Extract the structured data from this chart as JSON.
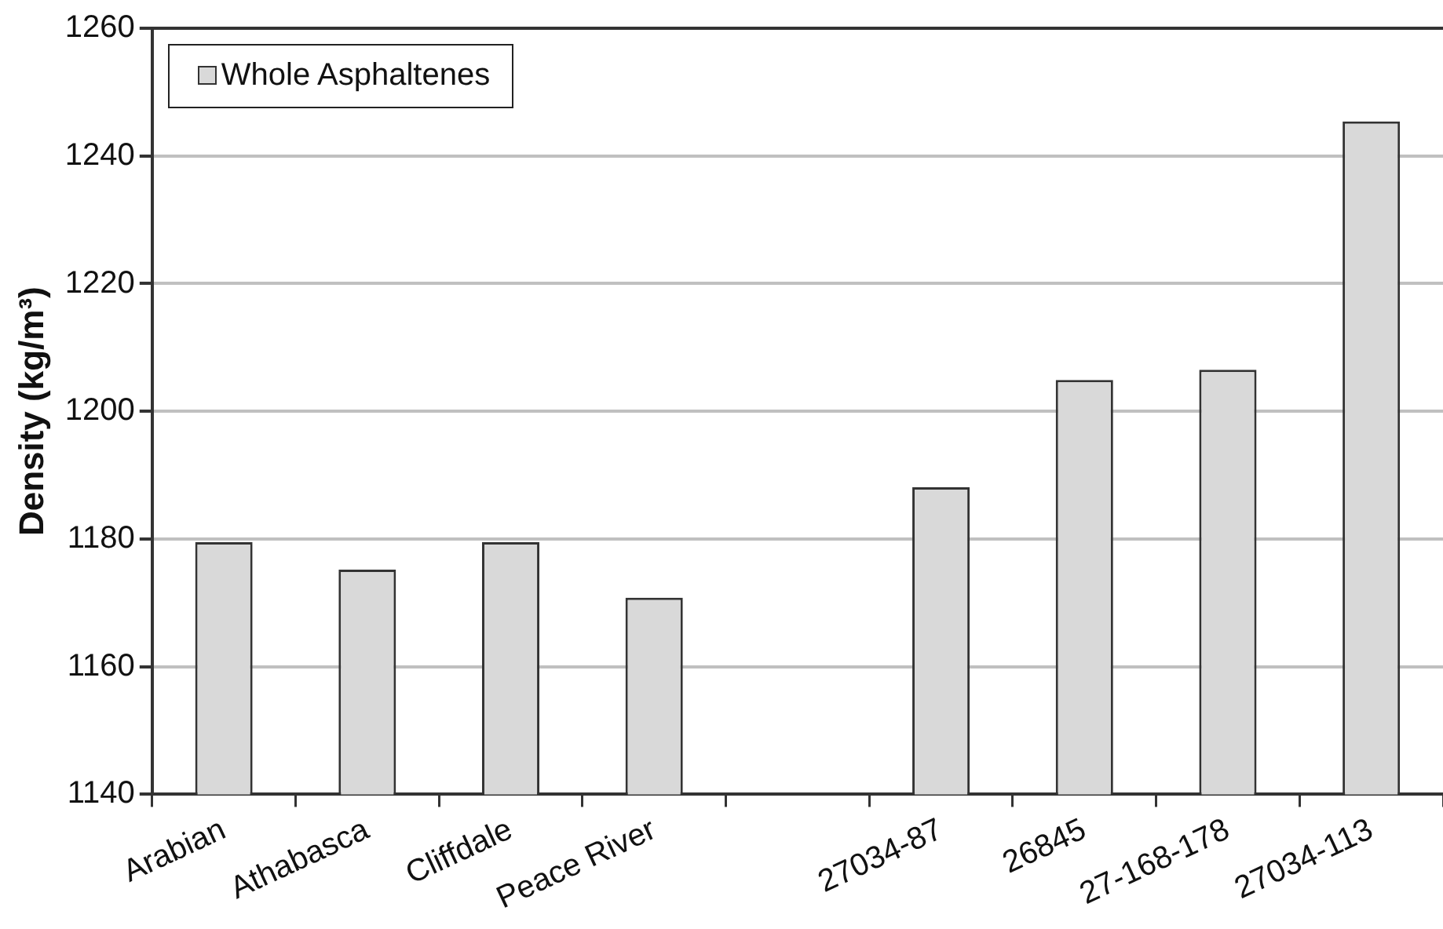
{
  "chart_data": {
    "type": "bar",
    "ylabel": "Density (kg/m³)",
    "categories": [
      "Arabian",
      "Athabasca",
      "Cliffdale",
      "Peace River",
      null,
      "27034-87",
      "26845",
      "27-168-178",
      "27034-113"
    ],
    "series": [
      {
        "name": "Whole Asphaltenes",
        "color": "#d9d9d9",
        "values": [
          1179.5,
          1175.2,
          1179.5,
          1170.8,
          null,
          1188.1,
          1204.9,
          1206.5,
          1245.4
        ]
      }
    ],
    "ylim": [
      1140,
      1260
    ],
    "yticks": [
      1140,
      1160,
      1180,
      1200,
      1220,
      1240,
      1260
    ],
    "grid": "y",
    "legend": "top left"
  }
}
